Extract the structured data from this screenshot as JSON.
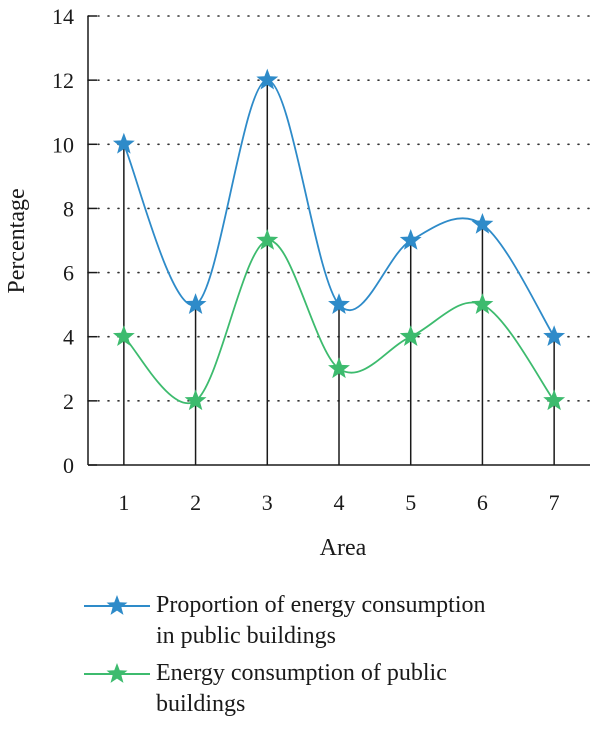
{
  "chart_data": {
    "type": "line",
    "xlabel": "Area",
    "ylabel": "Percentage",
    "x": [
      1,
      2,
      3,
      4,
      5,
      6,
      7
    ],
    "ylim": [
      0,
      14
    ],
    "yticks": [
      0,
      2,
      4,
      6,
      8,
      10,
      12,
      14
    ],
    "grid": "dotted horizontal",
    "marker": "star",
    "drop_lines": true,
    "legend_position": "bottom",
    "series": [
      {
        "name": "Proportion of energy consumption in public buildings",
        "legend_lines": [
          "Proportion of energy consumption",
          "in public buildings"
        ],
        "color": "#2e8bc9",
        "values": [
          10,
          5,
          12,
          5,
          7,
          7.5,
          4
        ]
      },
      {
        "name": "Energy consumption of public buildings",
        "legend_lines": [
          "Energy consumption of public",
          "buildings"
        ],
        "color": "#3dbb6e",
        "values": [
          4,
          2,
          7,
          3,
          4,
          5,
          2
        ]
      }
    ]
  }
}
